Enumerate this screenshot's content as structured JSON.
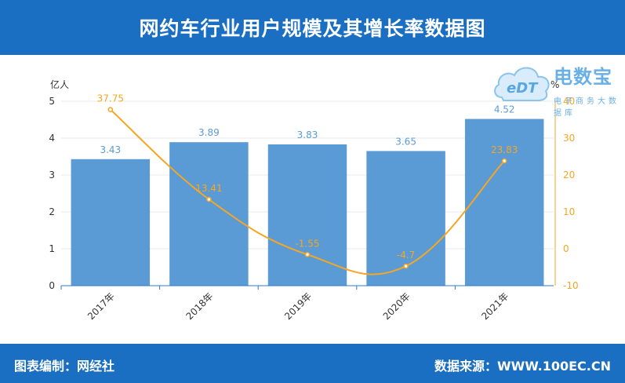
{
  "header": {
    "title": "网约车行业用户规模及其增长率数据图"
  },
  "footer": {
    "editor": "图表编制：网经社",
    "source": "数据来源：WWW.100EC.CN"
  },
  "logo": {
    "name": "电数宝",
    "tagline": "电子商务大数据库",
    "mark_text": "eDT"
  },
  "colors": {
    "bar": "#5b9bd5",
    "line": "#f5a623",
    "header": "#1a6fc2",
    "bar_label": "#5b9bd5",
    "line_label": "#f5a623"
  },
  "chart_data": {
    "type": "bar",
    "categories": [
      "2017年",
      "2018年",
      "2019年",
      "2020年",
      "2021年"
    ],
    "series": [
      {
        "values": [
          3.43,
          3.89,
          3.83,
          3.65,
          4.52
        ],
        "type": "bar",
        "axis": "left"
      },
      {
        "values": [
          37.75,
          13.41,
          -1.55,
          -4.7,
          23.83
        ],
        "type": "line",
        "axis": "right"
      }
    ],
    "title": "网约车行业用户规模及其增长率数据图",
    "ylabel": "亿人",
    "y2label": "%",
    "ylim": [
      0,
      5
    ],
    "y2lim": [
      -10,
      40
    ],
    "yticks": [
      0,
      1,
      2,
      3,
      4,
      5
    ],
    "y2ticks": [
      -10,
      0,
      10,
      20,
      30,
      40
    ],
    "grid": true
  }
}
